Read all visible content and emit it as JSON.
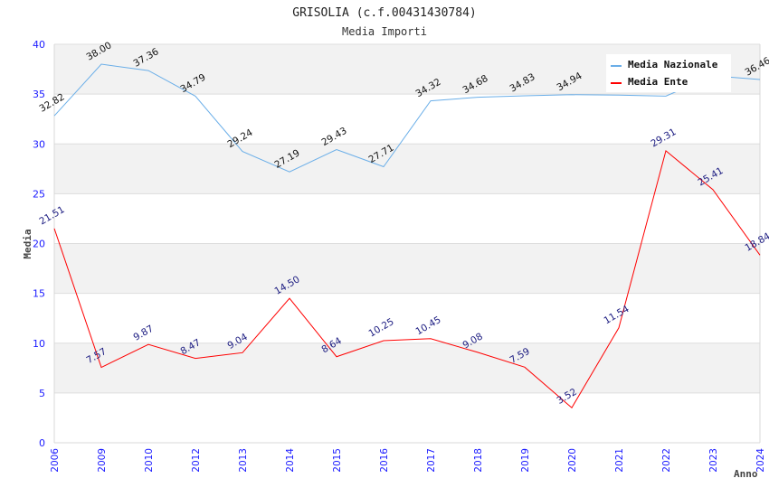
{
  "chart_data": {
    "type": "line",
    "title": "GRISOLIA (c.f.00431430784)",
    "subtitle": "Media Importi",
    "xlabel": "Anno",
    "ylabel": "Media",
    "ylim": [
      0,
      40
    ],
    "yticks": [
      0,
      5,
      10,
      15,
      20,
      25,
      30,
      35,
      40
    ],
    "grid": true,
    "legend_position": "top-right",
    "categories": [
      "2006",
      "2009",
      "2010",
      "2012",
      "2013",
      "2014",
      "2015",
      "2016",
      "2017",
      "2018",
      "2019",
      "2020",
      "2021",
      "2022",
      "2023",
      "2024"
    ],
    "series": [
      {
        "name": "Media Nazionale",
        "color": "#6aaee8",
        "values": [
          32.82,
          38.0,
          37.36,
          34.79,
          29.24,
          27.19,
          29.43,
          27.71,
          34.32,
          34.68,
          34.83,
          34.94,
          34.9,
          34.8,
          36.84,
          36.46
        ],
        "labels": [
          "32.82",
          "38.00",
          "37.36",
          "34.79",
          "29.24",
          "27.19",
          "29.43",
          "27.71",
          "34.32",
          "34.68",
          "34.83",
          "34.94",
          "",
          "",
          "",
          "36.46"
        ]
      },
      {
        "name": "Media Ente",
        "color": "#ff0000",
        "values": [
          21.51,
          7.57,
          9.87,
          8.47,
          9.04,
          14.5,
          8.64,
          10.25,
          10.45,
          9.08,
          7.59,
          3.52,
          11.54,
          29.31,
          25.41,
          18.84
        ],
        "labels": [
          "21.51",
          "7.57",
          "9.87",
          "8.47",
          "9.04",
          "14.50",
          "8.64",
          "10.25",
          "10.45",
          "9.08",
          "7.59",
          "3.52",
          "11.54",
          "29.31",
          "25.41",
          "18.84"
        ]
      }
    ]
  }
}
